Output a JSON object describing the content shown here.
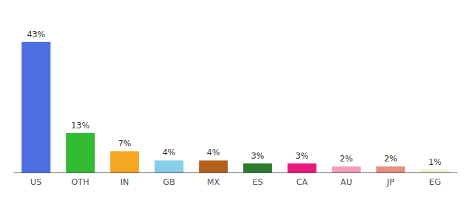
{
  "chart_data": {
    "type": "bar",
    "categories": [
      "US",
      "OTH",
      "IN",
      "GB",
      "MX",
      "ES",
      "CA",
      "AU",
      "JP",
      "EG"
    ],
    "values": [
      43,
      13,
      7,
      4,
      4,
      3,
      3,
      2,
      2,
      1
    ],
    "value_labels": [
      "43%",
      "13%",
      "7%",
      "4%",
      "4%",
      "3%",
      "3%",
      "2%",
      "2%",
      "1%"
    ],
    "colors": [
      "#4d6ee3",
      "#33bb33",
      "#f5a623",
      "#87ceeb",
      "#b5601a",
      "#2d7a2d",
      "#e8197a",
      "#f4a0b8",
      "#e89080",
      "#f0f0d0"
    ],
    "ylim": [
      0,
      50
    ],
    "grid": false,
    "data_labels": true,
    "tick_labels": "x"
  }
}
